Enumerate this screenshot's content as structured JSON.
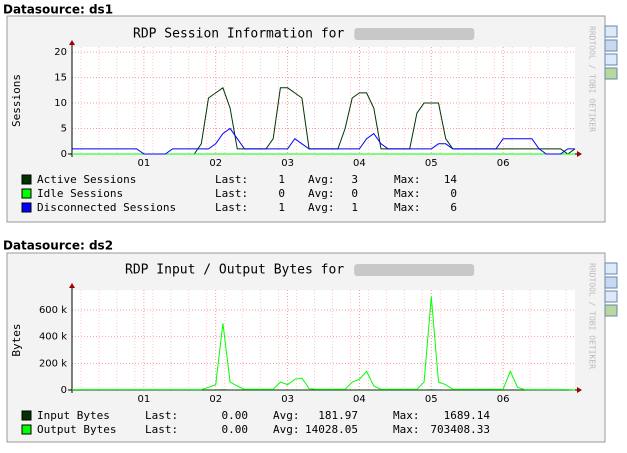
{
  "chart_data": [
    {
      "type": "line",
      "heading": "Datasource: ds1",
      "title": "RDP Session Information for",
      "ylabel": "Sessions",
      "watermark": "RRDTOOL / TOBI OETIKER",
      "x": [
        0,
        0.1,
        0.2,
        0.3,
        0.4,
        0.5,
        0.6,
        0.7,
        0.8,
        0.9,
        1,
        1.1,
        1.2,
        1.3,
        1.4,
        1.5,
        1.6,
        1.7,
        1.8,
        1.9,
        2,
        2.1,
        2.2,
        2.3,
        2.4,
        2.5,
        2.6,
        2.7,
        2.8,
        2.9,
        3,
        3.1,
        3.2,
        3.3,
        3.4,
        3.5,
        3.6,
        3.7,
        3.8,
        3.9,
        4,
        4.1,
        4.2,
        4.3,
        4.4,
        4.5,
        4.6,
        4.7,
        4.8,
        4.9,
        5,
        5.1,
        5.2,
        5.3,
        5.4,
        5.5,
        5.6,
        5.7,
        5.8,
        5.9,
        6,
        6.1,
        6.2,
        6.3,
        6.4,
        6.5,
        6.6,
        6.7,
        6.8,
        6.9,
        7
      ],
      "xlim": [
        0,
        7
      ],
      "xticks": [
        {
          "value": 1,
          "label": "01"
        },
        {
          "value": 2,
          "label": "02"
        },
        {
          "value": 3,
          "label": "03"
        },
        {
          "value": 4,
          "label": "04"
        },
        {
          "value": 5,
          "label": "05"
        },
        {
          "value": 6,
          "label": "06"
        }
      ],
      "ylim": [
        0,
        21
      ],
      "yticks": [
        0,
        5,
        10,
        15,
        20
      ],
      "grid": true,
      "stat_labels": [
        "Last:",
        "Avg:",
        "Max:"
      ],
      "series": [
        {
          "name": "Active Sessions",
          "color": "#003300",
          "stats": [
            "1",
            "3",
            "14"
          ],
          "values": [
            0,
            0,
            0,
            0,
            0,
            0,
            0,
            0,
            0,
            0,
            0,
            0,
            0,
            0,
            0,
            0,
            0,
            0,
            2,
            11,
            12,
            13,
            9,
            1,
            1,
            1,
            1,
            1,
            3,
            13,
            13,
            12,
            11,
            1,
            1,
            1,
            1,
            1,
            5,
            11,
            12,
            12,
            9,
            1,
            1,
            1,
            1,
            1,
            8,
            10,
            10,
            10,
            3,
            1,
            1,
            1,
            1,
            1,
            1,
            1,
            1,
            1,
            1,
            1,
            1,
            1,
            1,
            1,
            1,
            0,
            1
          ]
        },
        {
          "name": "Idle Sessions",
          "color": "#00ff00",
          "stats": [
            "0",
            "0",
            "0"
          ],
          "values": [
            0,
            0,
            0,
            0,
            0,
            0,
            0,
            0,
            0,
            0,
            0,
            0,
            0,
            0,
            0,
            0,
            0,
            0,
            0,
            0,
            0,
            0,
            0,
            0,
            0,
            0,
            0,
            0,
            0,
            0,
            0,
            0,
            0,
            0,
            0,
            0,
            0,
            0,
            0,
            0,
            0,
            0,
            0,
            0,
            0,
            0,
            0,
            0,
            0,
            0,
            0,
            0,
            0,
            0,
            0,
            0,
            0,
            0,
            0,
            0,
            0,
            0,
            0,
            0,
            0,
            0,
            0,
            0,
            0,
            0,
            0
          ]
        },
        {
          "name": "Disconnected Sessions",
          "color": "#0000ff",
          "stats": [
            "1",
            "1",
            "6"
          ],
          "values": [
            1,
            1,
            1,
            1,
            1,
            1,
            1,
            1,
            1,
            1,
            0,
            0,
            0,
            0,
            1,
            1,
            1,
            1,
            1,
            1,
            2,
            4,
            5,
            3,
            1,
            1,
            1,
            1,
            1,
            1,
            1,
            3,
            2,
            1,
            1,
            1,
            1,
            1,
            1,
            1,
            1,
            3,
            4,
            2,
            1,
            1,
            1,
            1,
            1,
            1,
            1,
            2,
            2,
            1,
            1,
            1,
            1,
            1,
            1,
            1,
            3,
            3,
            3,
            3,
            3,
            1,
            0,
            0,
            0,
            1,
            1
          ]
        }
      ]
    },
    {
      "type": "line",
      "heading": "Datasource: ds2",
      "title": "RDP Input / Output Bytes for",
      "ylabel": "Bytes",
      "watermark": "RRDTOOL / TOBI OETIKER",
      "x": [
        0,
        0.1,
        0.2,
        0.3,
        0.4,
        0.5,
        0.6,
        0.7,
        0.8,
        0.9,
        1,
        1.1,
        1.2,
        1.3,
        1.4,
        1.5,
        1.6,
        1.7,
        1.8,
        1.9,
        2,
        2.1,
        2.2,
        2.3,
        2.4,
        2.5,
        2.6,
        2.7,
        2.8,
        2.9,
        3,
        3.1,
        3.2,
        3.3,
        3.4,
        3.5,
        3.6,
        3.7,
        3.8,
        3.9,
        4,
        4.1,
        4.2,
        4.3,
        4.4,
        4.5,
        4.6,
        4.7,
        4.8,
        4.9,
        5,
        5.1,
        5.2,
        5.3,
        5.4,
        5.5,
        5.6,
        5.7,
        5.8,
        5.9,
        6,
        6.1,
        6.2,
        6.3,
        6.4,
        6.5,
        6.6,
        6.7,
        6.8,
        6.9,
        7
      ],
      "xlim": [
        0,
        7
      ],
      "xticks": [
        {
          "value": 1,
          "label": "01"
        },
        {
          "value": 2,
          "label": "02"
        },
        {
          "value": 3,
          "label": "03"
        },
        {
          "value": 4,
          "label": "04"
        },
        {
          "value": 5,
          "label": "05"
        },
        {
          "value": 6,
          "label": "06"
        }
      ],
      "ylim": [
        0,
        750000
      ],
      "yticks": [
        0,
        {
          "value": 200000,
          "label": "200 k"
        },
        {
          "value": 400000,
          "label": "400 k"
        },
        {
          "value": 600000,
          "label": "600 k"
        }
      ],
      "grid": true,
      "stat_labels": [
        "Last:",
        "Avg:",
        "Max:"
      ],
      "series": [
        {
          "name": "Input Bytes",
          "color": "#003300",
          "stats": [
            "0.00",
            "181.97",
            "1689.14"
          ],
          "values": [
            0,
            0,
            0,
            0,
            0,
            0,
            0,
            0,
            0,
            0,
            0,
            0,
            0,
            0,
            0,
            0,
            0,
            0,
            0,
            0,
            0,
            1000,
            0,
            0,
            0,
            0,
            0,
            0,
            0,
            0,
            0,
            0,
            0,
            0,
            0,
            0,
            0,
            0,
            0,
            0,
            0,
            0,
            0,
            0,
            0,
            0,
            0,
            0,
            0,
            0,
            1000,
            0,
            0,
            0,
            0,
            0,
            0,
            0,
            0,
            0,
            0,
            0,
            0,
            0,
            0,
            0,
            0,
            0,
            0,
            0,
            0
          ]
        },
        {
          "name": "Output Bytes",
          "color": "#00ff00",
          "stats": [
            "0.00",
            "14028.05",
            "703408.33"
          ],
          "values": [
            3000,
            3000,
            3000,
            3000,
            3000,
            3000,
            3000,
            3000,
            3000,
            3000,
            3000,
            3000,
            3000,
            3000,
            3000,
            3000,
            3000,
            3000,
            3000,
            20000,
            40000,
            500000,
            60000,
            30000,
            5000,
            5000,
            5000,
            5000,
            5000,
            60000,
            40000,
            80000,
            90000,
            10000,
            5000,
            5000,
            5000,
            5000,
            5000,
            60000,
            80000,
            140000,
            30000,
            5000,
            5000,
            5000,
            5000,
            5000,
            5000,
            60000,
            700000,
            60000,
            40000,
            5000,
            5000,
            5000,
            5000,
            5000,
            5000,
            5000,
            5000,
            140000,
            20000,
            3000,
            3000,
            3000,
            3000,
            3000,
            3000,
            3000,
            0
          ]
        }
      ]
    }
  ]
}
